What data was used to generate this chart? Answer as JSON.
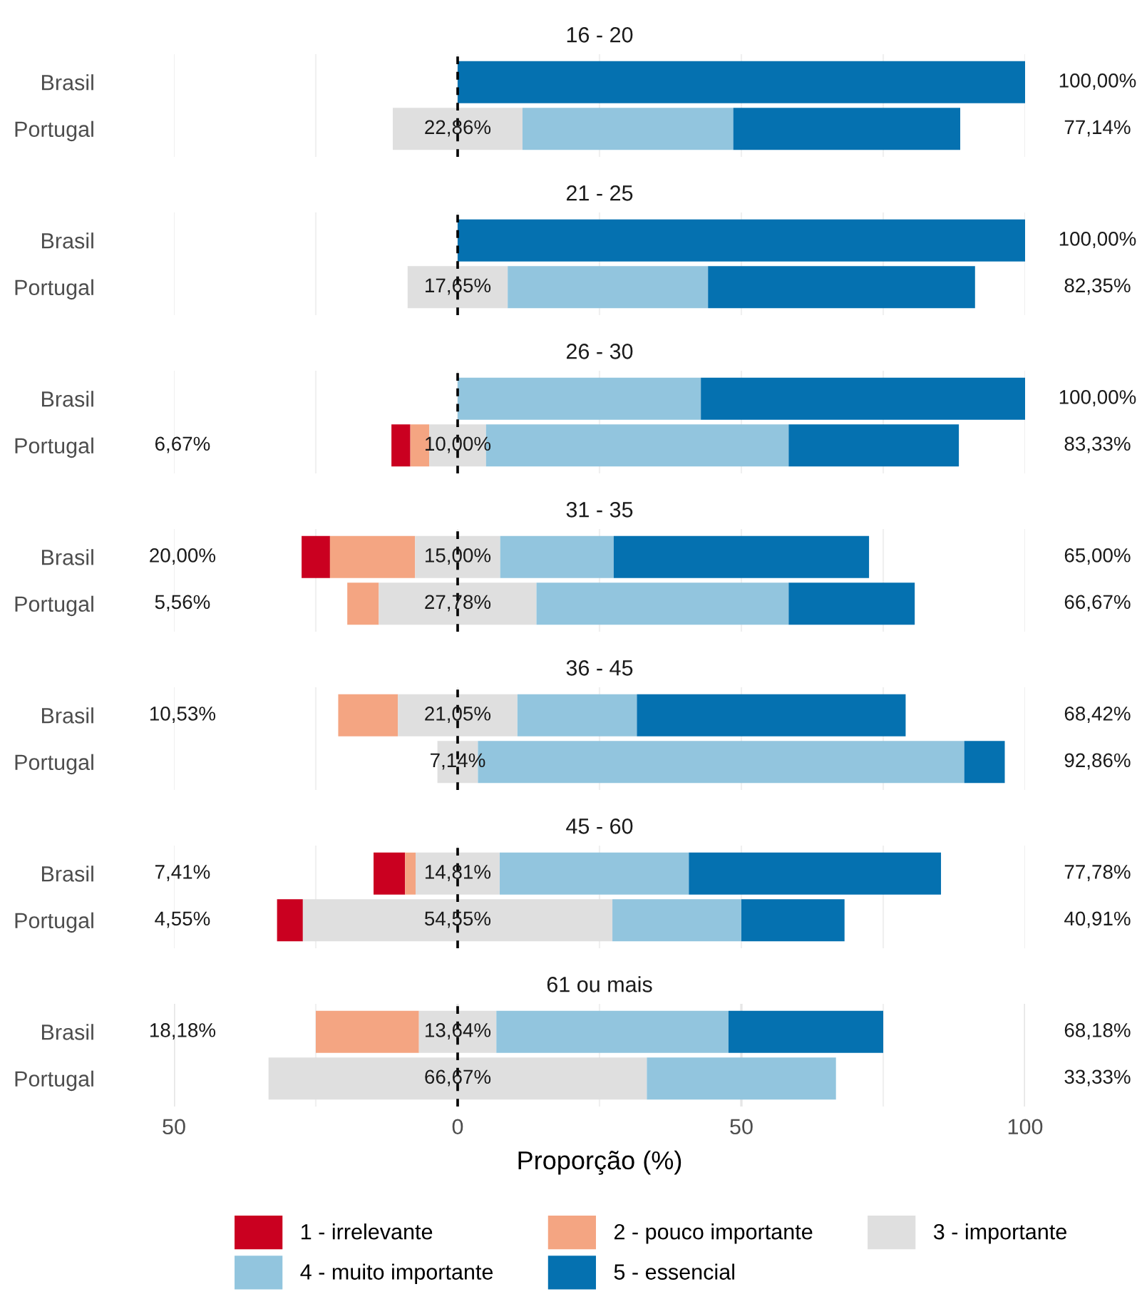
{
  "chart_data": [
    {
      "type": "bar",
      "orientation": "horizontal",
      "title": "16 - 20",
      "categories": [
        "Brasil",
        "Portugal"
      ],
      "legend": "bottom",
      "series": [
        {
          "name": "1 - irrelevante",
          "color": "#ca0020",
          "values": [
            null,
            null
          ],
          "base": [
            null,
            null
          ]
        },
        {
          "name": "2 - pouco importante",
          "color": "#f4a582",
          "values": [
            null,
            null
          ],
          "base": [
            null,
            null
          ]
        },
        {
          "name": "3 - importante",
          "color": "#dfdfdf",
          "values": [
            null,
            22.86
          ],
          "base": [
            null,
            -11.43
          ],
          "value_labels": [
            null,
            "22,86%"
          ]
        },
        {
          "name": "4 - muito importante",
          "color": "#92c5de",
          "values": [
            null,
            37.14
          ],
          "base": [
            null,
            11.43
          ]
        },
        {
          "name": "5 - essencial",
          "color": "#0571b0",
          "values": [
            100,
            40.0
          ],
          "base": [
            0,
            48.57
          ]
        }
      ],
      "annotations": [
        "100,00%",
        "77,14%"
      ],
      "xlim": [
        -50,
        100
      ],
      "xticks": [
        {
          "value": -50,
          "label": null
        },
        {
          "value": -25,
          "label": null
        },
        {
          "value": 0,
          "label": null
        },
        {
          "value": 25,
          "label": null
        },
        {
          "value": 50,
          "label": null
        },
        {
          "value": 75,
          "label": null
        },
        {
          "value": 100,
          "label": null
        }
      ],
      "grid": "x",
      "tick_labels": "y",
      "ref_lines": [
        {
          "axis": "x",
          "value": 0,
          "color": "#000000",
          "line_style": "dashed"
        }
      ]
    },
    {
      "type": "bar",
      "orientation": "horizontal",
      "title": "21 - 25",
      "categories": [
        "Brasil",
        "Portugal"
      ],
      "series": [
        {
          "color": "#dfdfdf",
          "values": [
            null,
            17.65
          ],
          "base": [
            null,
            -8.82
          ],
          "value_labels": [
            null,
            "17,65%"
          ]
        },
        {
          "color": "#92c5de",
          "values": [
            null,
            35.29
          ],
          "base": [
            null,
            8.82
          ]
        },
        {
          "color": "#0571b0",
          "values": [
            100,
            47.06
          ],
          "base": [
            0,
            44.12
          ]
        }
      ],
      "annotations": [
        "100,00%",
        "82,35%"
      ],
      "xlim": [
        -50,
        100
      ],
      "xticks": [
        {
          "value": -50,
          "label": null
        },
        {
          "value": -25,
          "label": null
        },
        {
          "value": 0,
          "label": null
        },
        {
          "value": 25,
          "label": null
        },
        {
          "value": 50,
          "label": null
        },
        {
          "value": 75,
          "label": null
        },
        {
          "value": 100,
          "label": null
        }
      ],
      "grid": "x",
      "tick_labels": "y",
      "ref_lines": [
        {
          "axis": "x",
          "value": 0,
          "color": "#000000",
          "line_style": "dashed"
        }
      ]
    },
    {
      "type": "bar",
      "orientation": "horizontal",
      "title": "26 - 30",
      "categories": [
        "Brasil",
        "Portugal"
      ],
      "series": [
        {
          "color": "#ca0020",
          "values": [
            null,
            3.33
          ],
          "base": [
            null,
            -11.67
          ]
        },
        {
          "color": "#f4a582",
          "values": [
            null,
            3.33
          ],
          "base": [
            null,
            -8.33
          ]
        },
        {
          "color": "#dfdfdf",
          "values": [
            null,
            10.0
          ],
          "base": [
            null,
            -5.0
          ],
          "value_labels": [
            null,
            "10,00%"
          ]
        },
        {
          "color": "#92c5de",
          "values": [
            42.86,
            53.33
          ],
          "base": [
            0,
            5.0
          ]
        },
        {
          "color": "#0571b0",
          "values": [
            57.14,
            30.0
          ],
          "base": [
            42.86,
            58.33
          ]
        }
      ],
      "annotations": [
        "100,00%",
        "6,67%",
        "83,33%"
      ],
      "xlim": [
        -50,
        100
      ],
      "xticks": [
        {
          "value": -50,
          "label": null
        },
        {
          "value": -25,
          "label": null
        },
        {
          "value": 0,
          "label": null
        },
        {
          "value": 25,
          "label": null
        },
        {
          "value": 50,
          "label": null
        },
        {
          "value": 75,
          "label": null
        },
        {
          "value": 100,
          "label": null
        }
      ],
      "grid": "x",
      "tick_labels": "y",
      "ref_lines": [
        {
          "axis": "x",
          "value": 0,
          "color": "#000000",
          "line_style": "dashed"
        }
      ]
    },
    {
      "type": "bar",
      "orientation": "horizontal",
      "title": "31 - 35",
      "categories": [
        "Brasil",
        "Portugal"
      ],
      "series": [
        {
          "color": "#ca0020",
          "values": [
            5.0,
            null
          ],
          "base": [
            -27.5,
            null
          ]
        },
        {
          "color": "#f4a582",
          "values": [
            15.0,
            5.56
          ],
          "base": [
            -22.5,
            -19.45
          ]
        },
        {
          "color": "#dfdfdf",
          "values": [
            15.0,
            27.78
          ],
          "base": [
            -7.5,
            -13.89
          ],
          "value_labels": [
            "15,00%",
            "27,78%"
          ]
        },
        {
          "color": "#92c5de",
          "values": [
            20.0,
            44.44
          ],
          "base": [
            7.5,
            13.89
          ]
        },
        {
          "color": "#0571b0",
          "values": [
            45.0,
            22.22
          ],
          "base": [
            27.5,
            58.33
          ]
        }
      ],
      "annotations": [
        "20,00%",
        "65,00%",
        "5,56%",
        "66,67%"
      ],
      "xlim": [
        -50,
        100
      ],
      "xticks": [
        {
          "value": -50,
          "label": null
        },
        {
          "value": -25,
          "label": null
        },
        {
          "value": 0,
          "label": null
        },
        {
          "value": 25,
          "label": null
        },
        {
          "value": 50,
          "label": null
        },
        {
          "value": 75,
          "label": null
        },
        {
          "value": 100,
          "label": null
        }
      ],
      "grid": "x",
      "tick_labels": "y",
      "ref_lines": [
        {
          "axis": "x",
          "value": 0,
          "color": "#000000",
          "line_style": "dashed"
        }
      ]
    },
    {
      "type": "bar",
      "orientation": "horizontal",
      "title": "36 - 45",
      "categories": [
        "Brasil",
        "Portugal"
      ],
      "series": [
        {
          "color": "#f4a582",
          "values": [
            10.53,
            null
          ],
          "base": [
            -21.05,
            null
          ]
        },
        {
          "color": "#dfdfdf",
          "values": [
            21.05,
            7.14
          ],
          "base": [
            -10.53,
            -3.57
          ],
          "value_labels": [
            "21,05%",
            "7,14%"
          ]
        },
        {
          "color": "#92c5de",
          "values": [
            21.05,
            85.71
          ],
          "base": [
            10.53,
            3.57
          ]
        },
        {
          "color": "#0571b0",
          "values": [
            47.37,
            7.14
          ],
          "base": [
            31.58,
            89.28
          ]
        }
      ],
      "annotations": [
        "10,53%",
        "68,42%",
        "92,86%"
      ],
      "xlim": [
        -50,
        100
      ],
      "xticks": [
        {
          "value": -50,
          "label": null
        },
        {
          "value": -25,
          "label": null
        },
        {
          "value": 0,
          "label": null
        },
        {
          "value": 25,
          "label": null
        },
        {
          "value": 50,
          "label": null
        },
        {
          "value": 75,
          "label": null
        },
        {
          "value": 100,
          "label": null
        }
      ],
      "grid": "x",
      "tick_labels": "y",
      "ref_lines": [
        {
          "axis": "x",
          "value": 0,
          "color": "#000000",
          "line_style": "dashed"
        }
      ]
    },
    {
      "type": "bar",
      "orientation": "horizontal",
      "title": "45 - 60",
      "categories": [
        "Brasil",
        "Portugal"
      ],
      "series": [
        {
          "color": "#ca0020",
          "values": [
            5.56,
            4.55
          ],
          "base": [
            -14.82,
            -31.83
          ]
        },
        {
          "color": "#f4a582",
          "values": [
            1.85,
            null
          ],
          "base": [
            -9.26,
            null
          ]
        },
        {
          "color": "#dfdfdf",
          "values": [
            14.81,
            54.55
          ],
          "base": [
            -7.41,
            -27.28
          ],
          "value_labels": [
            "14,81%",
            "54,55%"
          ]
        },
        {
          "color": "#92c5de",
          "values": [
            33.33,
            22.73
          ],
          "base": [
            7.41,
            27.27
          ]
        },
        {
          "color": "#0571b0",
          "values": [
            44.44,
            18.18
          ],
          "base": [
            40.74,
            50.0
          ]
        }
      ],
      "annotations": [
        "7,41%",
        "77,78%",
        "4,55%",
        "40,91%"
      ],
      "xlim": [
        -50,
        100
      ],
      "xticks": [
        {
          "value": -50,
          "label": null
        },
        {
          "value": -25,
          "label": null
        },
        {
          "value": 0,
          "label": null
        },
        {
          "value": 25,
          "label": null
        },
        {
          "value": 50,
          "label": null
        },
        {
          "value": 75,
          "label": null
        },
        {
          "value": 100,
          "label": null
        }
      ],
      "grid": "x",
      "tick_labels": "y",
      "ref_lines": [
        {
          "axis": "x",
          "value": 0,
          "color": "#000000",
          "line_style": "dashed"
        }
      ]
    },
    {
      "type": "bar",
      "orientation": "horizontal",
      "title": "61 ou mais",
      "categories": [
        "Brasil",
        "Portugal"
      ],
      "xlabel": "Proporção (%)",
      "series": [
        {
          "color": "#f4a582",
          "values": [
            18.18,
            null
          ],
          "base": [
            -25.0,
            null
          ]
        },
        {
          "color": "#dfdfdf",
          "values": [
            13.64,
            66.67
          ],
          "base": [
            -6.82,
            -33.33
          ],
          "value_labels": [
            "13,64%",
            "66,67%"
          ]
        },
        {
          "color": "#92c5de",
          "values": [
            40.91,
            33.33
          ],
          "base": [
            6.82,
            33.34
          ]
        },
        {
          "color": "#0571b0",
          "values": [
            27.27,
            null
          ],
          "base": [
            47.73,
            null
          ]
        }
      ],
      "annotations": [
        "18,18%",
        "68,18%",
        "33,33%"
      ],
      "xlim": [
        -50,
        100
      ],
      "xticks": [
        {
          "value": -50,
          "label": "50"
        },
        {
          "value": -25,
          "label": null
        },
        0,
        {
          "value": 25,
          "label": null
        },
        50,
        {
          "value": 75,
          "label": null
        },
        100
      ],
      "grid": "x",
      "ref_lines": [
        {
          "axis": "x",
          "value": 0,
          "color": "#000000",
          "line_style": "dashed"
        }
      ]
    }
  ]
}
